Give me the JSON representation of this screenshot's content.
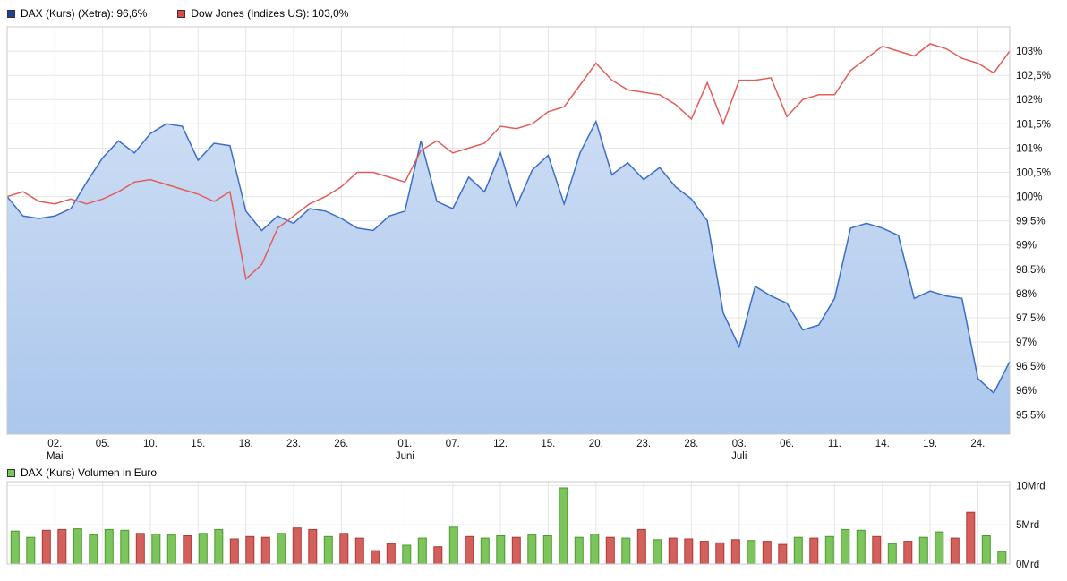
{
  "colors": {
    "grid": "#e5e5e5",
    "plot_border": "#c8c8c8",
    "axis_text": "#111111",
    "dax_fill_top": "#ccdcf4",
    "dax_fill_bottom": "#abc7ec"
  },
  "chart_data": [
    {
      "type": "line",
      "x_ticks": [
        {
          "i": 3,
          "label": "02."
        },
        {
          "i": 6,
          "label": "05."
        },
        {
          "i": 9,
          "label": "10."
        },
        {
          "i": 12,
          "label": "15."
        },
        {
          "i": 15,
          "label": "18."
        },
        {
          "i": 18,
          "label": "23."
        },
        {
          "i": 21,
          "label": "26."
        },
        {
          "i": 25,
          "label": "01."
        },
        {
          "i": 28,
          "label": "07."
        },
        {
          "i": 31,
          "label": "12."
        },
        {
          "i": 34,
          "label": "15."
        },
        {
          "i": 37,
          "label": "20."
        },
        {
          "i": 40,
          "label": "23."
        },
        {
          "i": 43,
          "label": "28."
        },
        {
          "i": 46,
          "label": "03."
        },
        {
          "i": 49,
          "label": "06."
        },
        {
          "i": 52,
          "label": "11."
        },
        {
          "i": 55,
          "label": "14."
        },
        {
          "i": 58,
          "label": "19."
        },
        {
          "i": 61,
          "label": "24."
        }
      ],
      "month_labels": [
        {
          "i": 3,
          "label": "Mai"
        },
        {
          "i": 25,
          "label": "Juni"
        },
        {
          "i": 46,
          "label": "Juli"
        }
      ],
      "y_ticks": [
        {
          "v": 103,
          "label": "103%"
        },
        {
          "v": 102.5,
          "label": "102,5%"
        },
        {
          "v": 102,
          "label": "102%"
        },
        {
          "v": 101.5,
          "label": "101,5%"
        },
        {
          "v": 101,
          "label": "101%"
        },
        {
          "v": 100.5,
          "label": "100,5%"
        },
        {
          "v": 100,
          "label": "100%"
        },
        {
          "v": 99.5,
          "label": "99,5%"
        },
        {
          "v": 99,
          "label": "99%"
        },
        {
          "v": 98.5,
          "label": "98,5%"
        },
        {
          "v": 98,
          "label": "98%"
        },
        {
          "v": 97.5,
          "label": "97,5%"
        },
        {
          "v": 97,
          "label": "97%"
        },
        {
          "v": 96.5,
          "label": "96,5%"
        },
        {
          "v": 96,
          "label": "96%"
        },
        {
          "v": 95.5,
          "label": "95,5%"
        }
      ],
      "ylim": [
        95.1,
        103.5
      ],
      "grid": true,
      "legend_position": "top-left",
      "series": [
        {
          "name": "DAX (Kurs) (Xetra)",
          "legend_label": "DAX (Kurs) (Xetra): 96,6%",
          "style": "area",
          "line_color": "#3a6ec8",
          "swatch_color": "#1f3e9c",
          "values": [
            100.0,
            99.6,
            99.55,
            99.6,
            99.75,
            100.3,
            100.8,
            101.15,
            100.9,
            101.3,
            101.5,
            101.45,
            100.75,
            101.1,
            101.05,
            99.7,
            99.3,
            99.6,
            99.45,
            99.75,
            99.7,
            99.55,
            99.35,
            99.3,
            99.6,
            99.7,
            101.15,
            99.9,
            99.75,
            100.4,
            100.1,
            100.9,
            99.8,
            100.55,
            100.85,
            99.85,
            100.9,
            101.55,
            100.45,
            100.7,
            100.35,
            100.6,
            100.2,
            99.95,
            99.5,
            97.6,
            96.9,
            98.15,
            97.95,
            97.8,
            97.25,
            97.35,
            97.9,
            99.35,
            99.45,
            99.35,
            99.2,
            97.9,
            98.05,
            97.95,
            97.9,
            96.25,
            95.95,
            96.6
          ]
        },
        {
          "name": "Dow Jones (Indizes US)",
          "legend_label": "Dow Jones (Indizes US): 103,0%",
          "style": "line",
          "line_color": "#e25d5a",
          "swatch_color": "#e04848",
          "values": [
            100.0,
            100.1,
            99.9,
            99.85,
            99.95,
            99.85,
            99.95,
            100.1,
            100.3,
            100.35,
            100.25,
            100.15,
            100.05,
            99.9,
            100.1,
            98.3,
            98.6,
            99.35,
            99.6,
            99.85,
            100.0,
            100.2,
            100.5,
            100.5,
            100.4,
            100.3,
            100.95,
            101.15,
            100.9,
            101.0,
            101.1,
            101.45,
            101.4,
            101.5,
            101.75,
            101.85,
            102.3,
            102.75,
            102.4,
            102.2,
            102.15,
            102.1,
            101.9,
            101.6,
            102.35,
            101.5,
            102.4,
            102.4,
            102.45,
            101.65,
            102.0,
            102.1,
            102.1,
            102.6,
            102.85,
            103.1,
            103.0,
            102.9,
            103.15,
            103.05,
            102.85,
            102.75,
            102.55,
            103.0
          ]
        }
      ]
    },
    {
      "type": "bar",
      "name": "DAX (Kurs) Volumen in Euro",
      "legend_label": "DAX (Kurs) Volumen in Euro",
      "swatch_color": "#7cc45c",
      "y_ticks": [
        {
          "v": 10,
          "label": "10Mrd"
        },
        {
          "v": 5,
          "label": "5Mrd"
        },
        {
          "v": 0,
          "label": "0Mrd"
        }
      ],
      "ylim": [
        0,
        10.5
      ],
      "values": [
        4.2,
        3.4,
        4.3,
        4.4,
        4.5,
        3.7,
        4.4,
        4.3,
        3.9,
        3.8,
        3.7,
        3.6,
        3.9,
        4.4,
        3.2,
        3.5,
        3.4,
        3.9,
        4.6,
        4.4,
        3.5,
        3.9,
        3.3,
        1.7,
        2.6,
        2.4,
        3.3,
        2.2,
        4.7,
        3.5,
        3.3,
        3.6,
        3.4,
        3.7,
        3.6,
        9.7,
        3.4,
        3.8,
        3.4,
        3.3,
        4.4,
        3.1,
        3.3,
        3.2,
        2.9,
        2.7,
        3.1,
        3.0,
        2.9,
        2.5,
        3.4,
        3.3,
        3.5,
        4.4,
        4.3,
        3.5,
        2.6,
        2.9,
        3.4,
        4.1,
        3.3,
        6.6,
        3.6,
        1.6
      ],
      "bar_colors": [
        "g",
        "g",
        "r",
        "r",
        "g",
        "g",
        "g",
        "g",
        "r",
        "g",
        "g",
        "r",
        "g",
        "g",
        "r",
        "r",
        "r",
        "g",
        "r",
        "r",
        "g",
        "r",
        "r",
        "r",
        "r",
        "g",
        "g",
        "r",
        "g",
        "r",
        "g",
        "g",
        "r",
        "g",
        "g",
        "g",
        "g",
        "g",
        "r",
        "g",
        "r",
        "g",
        "r",
        "r",
        "r",
        "r",
        "r",
        "g",
        "r",
        "r",
        "g",
        "r",
        "g",
        "g",
        "g",
        "r",
        "g",
        "r",
        "g",
        "g",
        "r",
        "r",
        "g",
        "g"
      ],
      "color_map": {
        "g": "#7cc45c",
        "r": "#d4605c"
      },
      "border_map": {
        "g": "#4c9a2e",
        "r": "#aa3a38"
      }
    }
  ]
}
